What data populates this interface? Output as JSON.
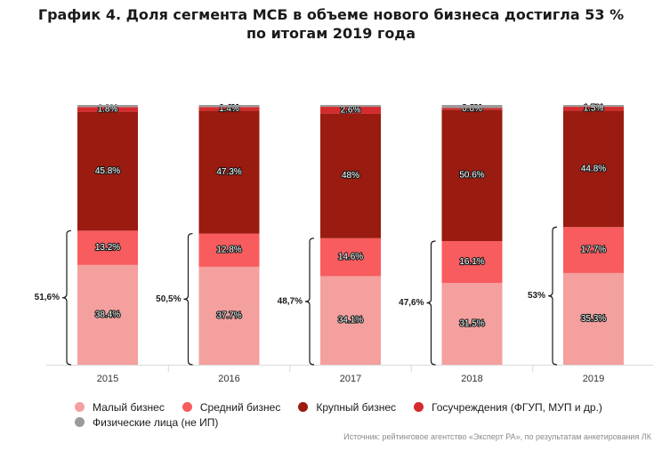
{
  "title_line1": "График 4. Доля сегмента МСБ в объеме нового бизнеса достигла 53 %",
  "title_line2": "по итогам 2019 года",
  "source": "Источник: рейтинговое агентство «Эксперт РА», по результатам анкетирования ЛК",
  "colors": {
    "small": "#f4a09f",
    "medium": "#f85c5e",
    "large": "#9a1b0f",
    "gov": "#d62b2e",
    "individuals": "#9b9b9b"
  },
  "chart_data": {
    "type": "bar",
    "stacked": true,
    "categories": [
      "2015",
      "2016",
      "2017",
      "2018",
      "2019"
    ],
    "series": [
      {
        "name": "Малый бизнес",
        "key": "small",
        "values": [
          38.4,
          37.7,
          34.1,
          31.5,
          35.3
        ],
        "labels": [
          "38.4%",
          "37.7%",
          "34.1%",
          "31.5%",
          "35.3%"
        ]
      },
      {
        "name": "Средний бизнес",
        "key": "medium",
        "values": [
          13.2,
          12.8,
          14.6,
          16.1,
          17.7
        ],
        "labels": [
          "13.2%",
          "12.8%",
          "14.6%",
          "16.1%",
          "17.7%"
        ]
      },
      {
        "name": "Крупный бизнес",
        "key": "large",
        "values": [
          45.8,
          47.3,
          48.0,
          50.6,
          44.8
        ],
        "labels": [
          "45.8%",
          "47.3%",
          "48%",
          "50.6%",
          "44.8%"
        ]
      },
      {
        "name": "Госучреждения (ФГУП, МУП и др.)",
        "key": "gov",
        "values": [
          1.8,
          1.4,
          2.6,
          0.6,
          1.5
        ],
        "labels": [
          "1.8%",
          "1.4%",
          "2.6%",
          "0.6%",
          "1.5%"
        ]
      },
      {
        "name": "Физические лица (не ИП)",
        "key": "individuals",
        "values": [
          0.8,
          0.8,
          0.7,
          1.2,
          0.7
        ],
        "labels": [
          "",
          "",
          "",
          "",
          ""
        ]
      }
    ],
    "smb_share_labels": [
      "51,6%",
      "50,5%",
      "48,7%",
      "47,6%",
      "53%"
    ],
    "ylim": [
      0,
      100
    ],
    "grid": false,
    "legend_position": "bottom"
  }
}
